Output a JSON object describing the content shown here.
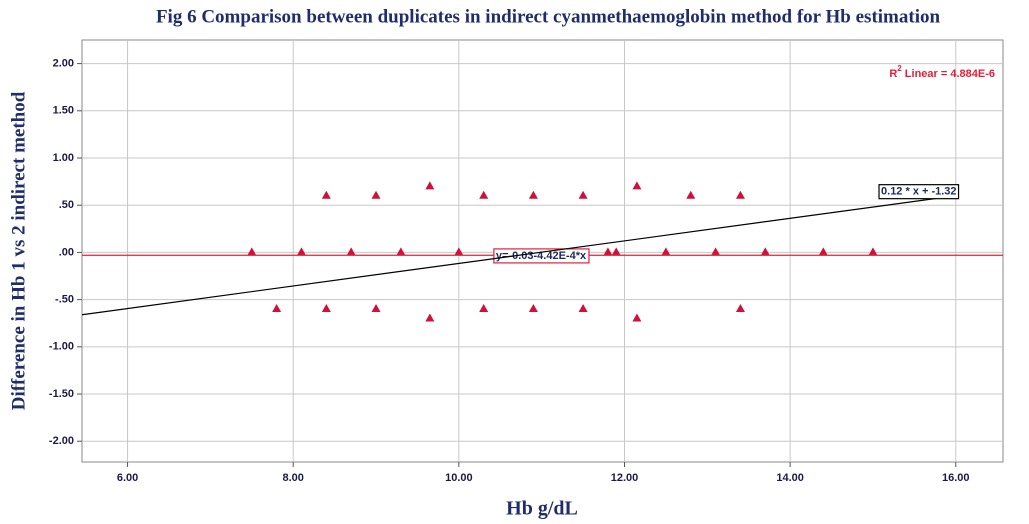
{
  "chart_data": {
    "type": "scatter",
    "title": "Fig 6 Comparison between duplicates in indirect cyanmethaemoglobin method for Hb estimation",
    "x_label": "Hb g/dL",
    "y_label": "Difference in Hb 1 vs 2 indirect method",
    "color": "#d0103a",
    "x": [
      8.4,
      9.0,
      9.65,
      10.3,
      10.9,
      11.5,
      12.15,
      12.8,
      13.4,
      7.5,
      8.1,
      8.7,
      9.3,
      10.0,
      11.8,
      11.9,
      12.5,
      13.1,
      13.7,
      14.4,
      15.0,
      7.8,
      8.4,
      9.0,
      9.65,
      10.3,
      10.9,
      11.5,
      12.15,
      13.4
    ],
    "values": [
      0.6,
      0.6,
      0.7,
      0.6,
      0.6,
      0.6,
      0.7,
      0.6,
      0.6,
      0,
      0,
      0,
      0,
      0,
      0,
      0,
      0,
      0,
      0,
      0,
      0,
      -0.6,
      -0.6,
      -0.6,
      -0.7,
      -0.6,
      -0.6,
      -0.6,
      -0.7,
      -0.6
    ],
    "xlim": [
      5.45,
      16.57
    ],
    "ylim": [
      -2.22,
      2.25
    ],
    "xticks": [
      {
        "value": 6,
        "label": "6.00"
      },
      {
        "value": 8,
        "label": "8.00"
      },
      {
        "value": 10,
        "label": "10.00"
      },
      {
        "value": 12,
        "label": "12.00"
      },
      {
        "value": 14,
        "label": "14.00"
      },
      {
        "value": 16,
        "label": "16.00"
      }
    ],
    "yticks": [
      {
        "value": 2,
        "label": "2.00"
      },
      {
        "value": 1.5,
        "label": "1.50"
      },
      {
        "value": 1,
        "label": "1.00"
      },
      {
        "value": 0.5,
        "label": ".50"
      },
      {
        "value": 0,
        "label": ".00"
      },
      {
        "value": -0.5,
        "label": "-.50"
      },
      {
        "value": -1,
        "label": "-1.00"
      },
      {
        "value": -1.5,
        "label": "-1.50"
      },
      {
        "value": -2,
        "label": "-2.00"
      }
    ],
    "grid": true,
    "lines": [
      {
        "label": "y=-0.03-4.42E-4*x",
        "color": "#e0203a",
        "x": [
          5.45,
          16.57
        ],
        "y": [
          -0.03,
          -0.03
        ]
      },
      {
        "label": "0.12 * x + -1.32",
        "color": "#000000",
        "x": [
          5.45,
          16
        ],
        "y": [
          -0.66,
          0.6
        ]
      }
    ],
    "r2": {
      "prefix": "R",
      "sup": "2",
      "text": " Linear = 4.884E-6",
      "color": "#e0203a"
    }
  }
}
